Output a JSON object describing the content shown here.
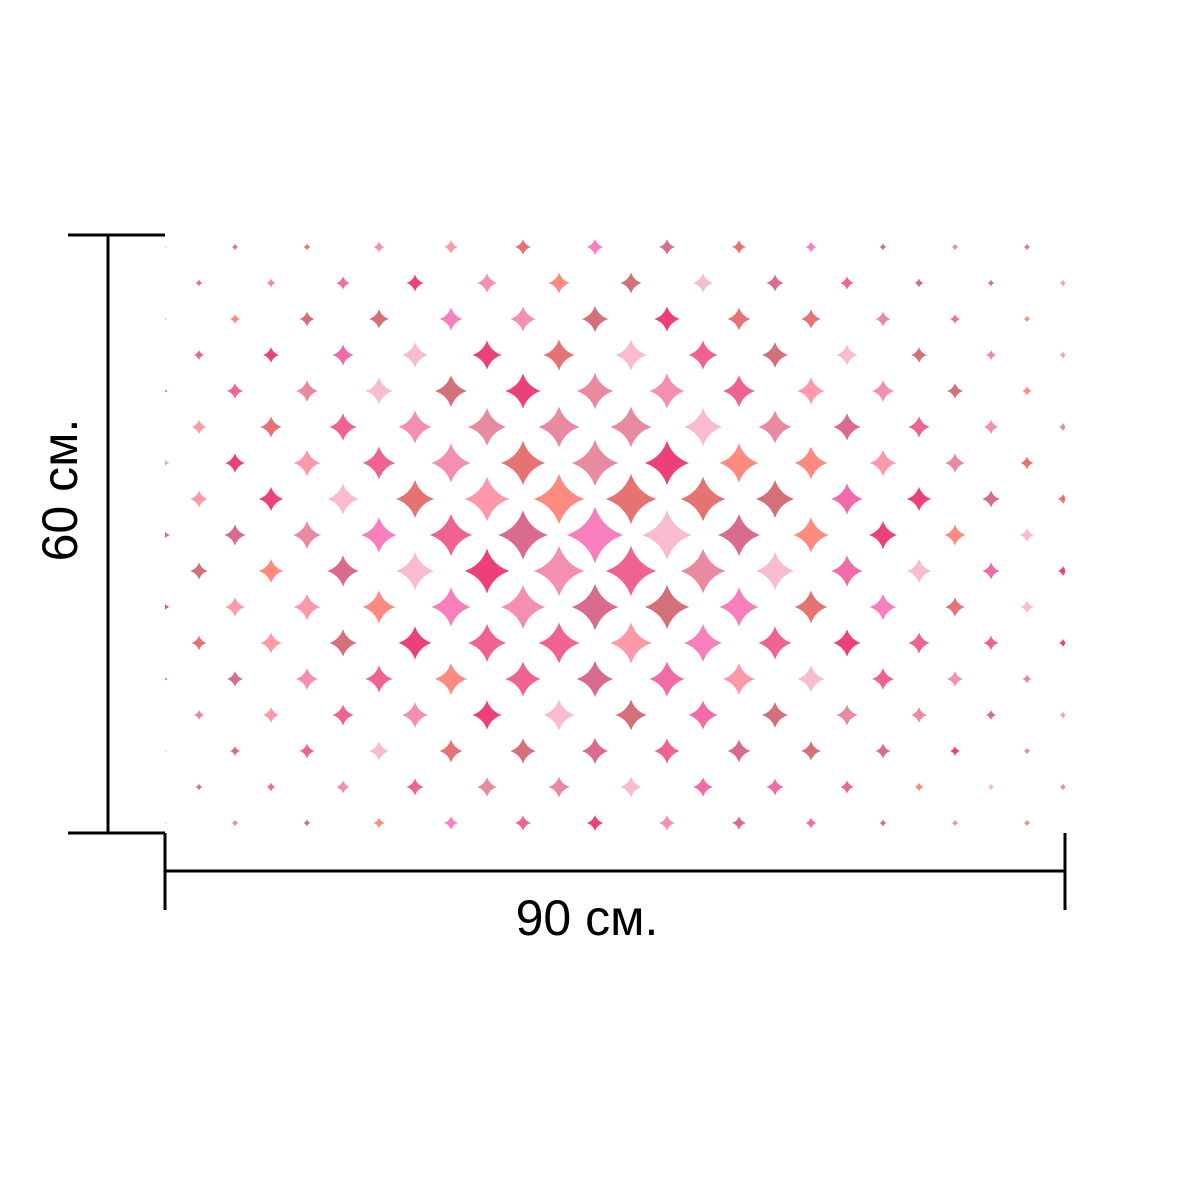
{
  "dimensions": {
    "width_label": "90 см.",
    "height_label": "60 см."
  },
  "pattern": {
    "description_icon": "scallop-tile-pattern",
    "background_color": "#ffffff",
    "palette": [
      "#f06292",
      "#f48fb1",
      "#ec407a",
      "#e57373",
      "#f8bbd0",
      "#d4707a",
      "#f06ba8",
      "#ff8a80",
      "#e88aa0",
      "#f77fbe",
      "#d96c8c",
      "#ff99aa"
    ]
  },
  "colors": {
    "line": "#000000"
  }
}
